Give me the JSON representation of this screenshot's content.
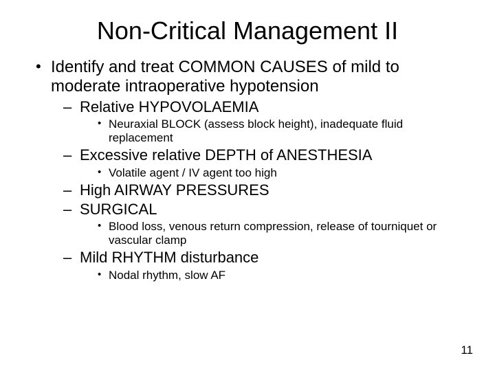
{
  "title": "Non-Critical Management II",
  "page_number": "11",
  "colors": {
    "background": "#ffffff",
    "text": "#000000"
  },
  "typography": {
    "family": "Arial",
    "title_size_pt": 36,
    "lvl1_size_pt": 24,
    "lvl2_size_pt": 22,
    "lvl3_size_pt": 17,
    "pagenum_size_pt": 17
  },
  "bullets": {
    "lvl1": [
      {
        "text": "Identify and treat COMMON CAUSES of mild to moderate intraoperative hypotension",
        "lvl2": [
          {
            "text": "Relative HYPOVOLAEMIA",
            "lvl3": [
              "Neuraxial BLOCK (assess block height), inadequate fluid replacement"
            ]
          },
          {
            "text": "Excessive relative DEPTH of ANESTHESIA",
            "lvl3": [
              "Volatile agent / IV agent too high"
            ]
          },
          {
            "text": "High AIRWAY PRESSURES",
            "lvl3": []
          },
          {
            "text": "SURGICAL",
            "lvl3": [
              "Blood loss, venous return compression, release of tourniquet or vascular clamp"
            ]
          },
          {
            "text": "Mild RHYTHM disturbance",
            "lvl3": [
              "Nodal rhythm, slow AF"
            ]
          }
        ]
      }
    ]
  }
}
